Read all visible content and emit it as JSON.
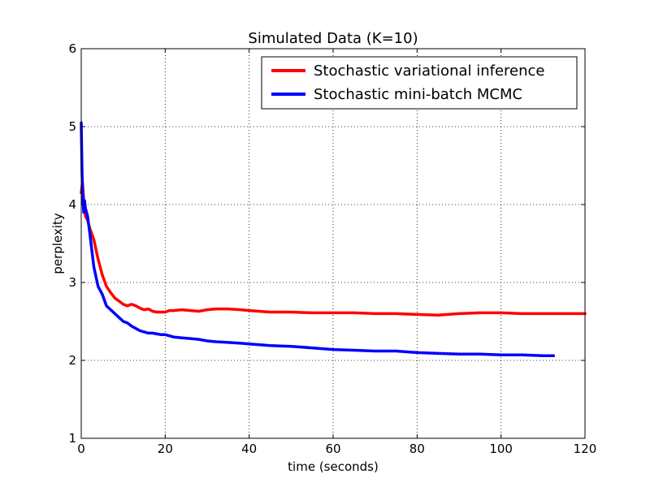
{
  "chart_data": {
    "type": "line",
    "title": "Simulated Data (K=10)",
    "xlabel": "time (seconds)",
    "ylabel": "perplexity",
    "xlim": [
      0,
      120
    ],
    "ylim": [
      1,
      6
    ],
    "xticks": [
      0,
      20,
      40,
      60,
      80,
      100,
      120
    ],
    "yticks": [
      1,
      2,
      3,
      4,
      5,
      6
    ],
    "xtick_labels": [
      "0",
      "20",
      "40",
      "60",
      "80",
      "100",
      "120"
    ],
    "ytick_labels": [
      "1",
      "2",
      "3",
      "4",
      "5",
      "6"
    ],
    "grid": true,
    "legend_position": "top-right",
    "series": [
      {
        "name": "Stochastic variational inference",
        "color": "#ff0000",
        "x": [
          0,
          0.3,
          0.6,
          1,
          1.5,
          2,
          3,
          4,
          5,
          6,
          7,
          8,
          9,
          10,
          11,
          12,
          13,
          14,
          15,
          16,
          17,
          18,
          19,
          20,
          21,
          22,
          24,
          26,
          28,
          30,
          32,
          35,
          38,
          40,
          45,
          50,
          55,
          60,
          65,
          70,
          75,
          80,
          85,
          90,
          95,
          100,
          105,
          110,
          115,
          120
        ],
        "y": [
          4.15,
          4.28,
          4.05,
          3.85,
          3.8,
          3.7,
          3.55,
          3.3,
          3.1,
          2.95,
          2.87,
          2.8,
          2.76,
          2.72,
          2.7,
          2.72,
          2.7,
          2.67,
          2.65,
          2.66,
          2.63,
          2.62,
          2.62,
          2.62,
          2.64,
          2.64,
          2.65,
          2.64,
          2.63,
          2.65,
          2.66,
          2.66,
          2.65,
          2.64,
          2.62,
          2.62,
          2.61,
          2.61,
          2.61,
          2.6,
          2.6,
          2.59,
          2.58,
          2.6,
          2.61,
          2.61,
          2.6,
          2.6,
          2.6,
          2.6
        ]
      },
      {
        "name": "Stochastic mini-batch MCMC",
        "color": "#0000ff",
        "x": [
          0,
          0.2,
          0.4,
          0.6,
          0.8,
          1,
          1.5,
          2,
          3,
          4,
          5,
          6,
          7,
          8,
          9,
          10,
          11,
          12,
          14,
          16,
          17,
          18,
          19,
          20,
          22,
          24,
          26,
          28,
          30,
          32,
          35,
          38,
          40,
          45,
          50,
          55,
          60,
          65,
          70,
          75,
          80,
          85,
          90,
          95,
          100,
          105,
          110,
          112.5
        ],
        "y": [
          5.05,
          4.4,
          4.05,
          3.9,
          4.05,
          3.95,
          3.85,
          3.65,
          3.2,
          2.95,
          2.85,
          2.7,
          2.65,
          2.6,
          2.55,
          2.5,
          2.48,
          2.44,
          2.38,
          2.35,
          2.35,
          2.34,
          2.33,
          2.33,
          2.3,
          2.29,
          2.28,
          2.27,
          2.25,
          2.24,
          2.23,
          2.22,
          2.21,
          2.19,
          2.18,
          2.16,
          2.14,
          2.13,
          2.12,
          2.12,
          2.1,
          2.09,
          2.08,
          2.08,
          2.07,
          2.07,
          2.06,
          2.06
        ]
      }
    ]
  }
}
